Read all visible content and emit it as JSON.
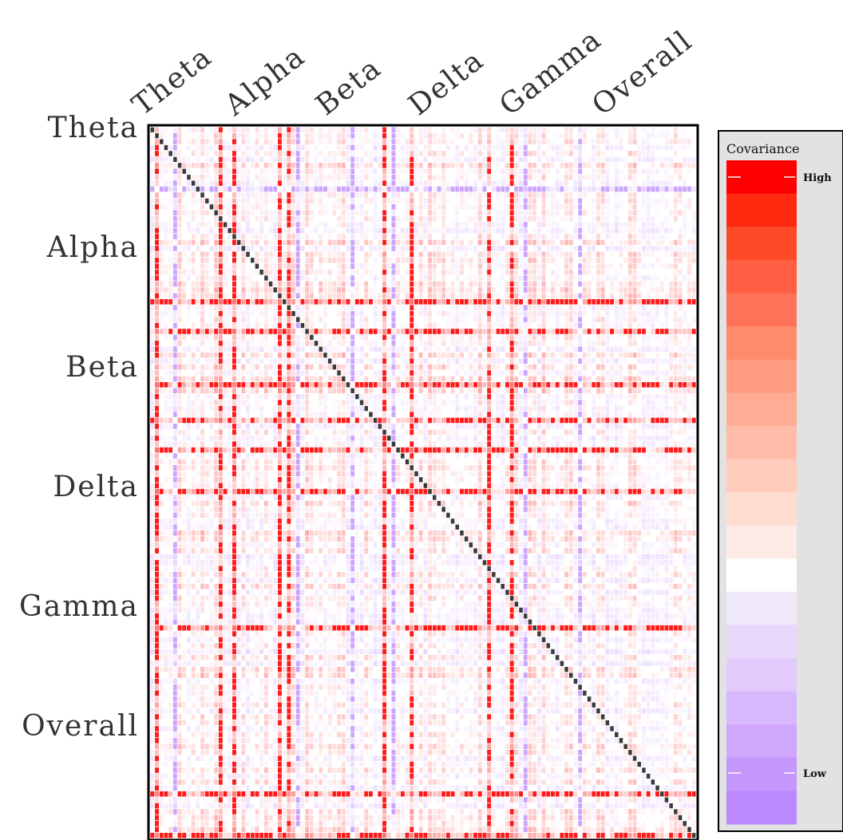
{
  "chart_data": {
    "type": "heatmap",
    "x_labels": [
      "Theta",
      "Alpha",
      "Beta",
      "Delta",
      "Gamma",
      "Overall"
    ],
    "y_labels": [
      "Theta",
      "Alpha",
      "Beta",
      "Delta",
      "Gamma",
      "Overall"
    ],
    "diagonal": "highest covariance (self)",
    "colorbar": {
      "title": "Covariance",
      "high_label": "High",
      "low_label": "Low",
      "colors": [
        "#ff0000",
        "#ff2a10",
        "#ff4a2a",
        "#ff5e42",
        "#ff7458",
        "#ff8a6c",
        "#ff9c80",
        "#ffac94",
        "#ffbca8",
        "#ffccbc",
        "#ffdcd0",
        "#ffebe6",
        "#ffffff",
        "#efe8f8",
        "#e8d8fb",
        "#e2cafc",
        "#d8b8fd",
        "#cfa8fd",
        "#c597fd",
        "#bb88fd"
      ]
    },
    "colors": {
      "positive": "#ff0000",
      "negative": "#bb88fd",
      "diagonal": "#3a3a3a",
      "panel_background": "#e2e2e2"
    }
  }
}
